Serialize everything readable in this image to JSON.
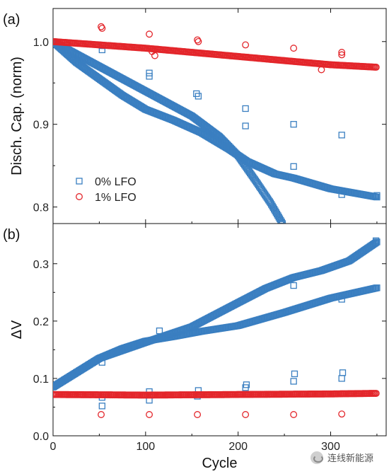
{
  "chart_data": [
    {
      "type": "scatter",
      "panel_label": "(a)",
      "ylabel": "Disch. Cap. (norm)",
      "xlim": [
        0,
        360
      ],
      "ylim": [
        0.78,
        1.04
      ],
      "yticks": [
        0.8,
        0.9,
        1.0
      ],
      "ytick_labels": [
        "0.8",
        "0.9",
        "1.0"
      ],
      "legend": {
        "placement": "lower-left",
        "entries": [
          {
            "label": "0% LFO",
            "color": "#3a7fc1",
            "marker": "square"
          },
          {
            "label": "1% LFO",
            "color": "#e3262b",
            "marker": "circle"
          }
        ]
      },
      "series": [
        {
          "name": "0% LFO",
          "color": "#3a7fc1",
          "marker": "square",
          "curves": [
            [
              [
                0,
                1.0
              ],
              [
                25,
                0.975
              ],
              [
                50,
                0.955
              ],
              [
                75,
                0.935
              ],
              [
                100,
                0.918
              ],
              [
                130,
                0.905
              ],
              [
                160,
                0.89
              ],
              [
                190,
                0.87
              ],
              [
                210,
                0.855
              ],
              [
                240,
                0.84
              ],
              [
                260,
                0.835
              ],
              [
                300,
                0.822
              ],
              [
                350,
                0.812
              ]
            ],
            [
              [
                0,
                1.0
              ],
              [
                50,
                0.97
              ],
              [
                100,
                0.94
              ],
              [
                150,
                0.91
              ],
              [
                180,
                0.885
              ],
              [
                200,
                0.862
              ],
              [
                220,
                0.83
              ],
              [
                235,
                0.805
              ],
              [
                248,
                0.78
              ]
            ]
          ],
          "outliers": [
            [
              53,
              0.99
            ],
            [
              53,
              0.995
            ],
            [
              104,
              0.958
            ],
            [
              104,
              0.962
            ],
            [
              155,
              0.937
            ],
            [
              157,
              0.934
            ],
            [
              208,
              0.919
            ],
            [
              208,
              0.898
            ],
            [
              260,
              0.9
            ],
            [
              260,
              0.849
            ],
            [
              312,
              0.887
            ],
            [
              312,
              0.815
            ],
            [
              350,
              0.814
            ]
          ]
        },
        {
          "name": "1% LFO",
          "color": "#e3262b",
          "marker": "circle",
          "curves": [
            [
              [
                0,
                1.0
              ],
              [
                50,
                0.996
              ],
              [
                100,
                0.992
              ],
              [
                150,
                0.987
              ],
              [
                200,
                0.982
              ],
              [
                250,
                0.977
              ],
              [
                300,
                0.972
              ],
              [
                350,
                0.969
              ]
            ]
          ],
          "outliers": [
            [
              52,
              1.018
            ],
            [
              53,
              1.016
            ],
            [
              104,
              1.009
            ],
            [
              107,
              0.988
            ],
            [
              110,
              0.983
            ],
            [
              156,
              1.002
            ],
            [
              157,
              1.0
            ],
            [
              208,
              0.996
            ],
            [
              260,
              0.992
            ],
            [
              290,
              0.966
            ],
            [
              312,
              0.987
            ],
            [
              312,
              0.984
            ]
          ]
        }
      ]
    },
    {
      "type": "scatter",
      "panel_label": "(b)",
      "ylabel": "ΔV",
      "xlabel": "Cycle",
      "xlim": [
        0,
        360
      ],
      "ylim": [
        0.0,
        0.37
      ],
      "xticks": [
        0,
        100,
        200,
        300
      ],
      "xtick_labels": [
        "0",
        "100",
        "200",
        "300"
      ],
      "yticks": [
        0.0,
        0.1,
        0.2,
        0.3
      ],
      "ytick_labels": [
        "0.0",
        "0.1",
        "0.2",
        "0.3"
      ],
      "series": [
        {
          "name": "0% LFO",
          "color": "#3a7fc1",
          "marker": "square",
          "curves": [
            [
              [
                0,
                0.085
              ],
              [
                25,
                0.11
              ],
              [
                50,
                0.135
              ],
              [
                75,
                0.152
              ],
              [
                100,
                0.165
              ],
              [
                130,
                0.173
              ],
              [
                160,
                0.182
              ],
              [
                200,
                0.192
              ],
              [
                250,
                0.215
              ],
              [
                300,
                0.24
              ],
              [
                350,
                0.258
              ]
            ],
            [
              [
                0,
                0.085
              ],
              [
                50,
                0.135
              ],
              [
                100,
                0.163
              ],
              [
                150,
                0.19
              ],
              [
                200,
                0.232
              ],
              [
                230,
                0.257
              ],
              [
                260,
                0.276
              ],
              [
                290,
                0.288
              ],
              [
                320,
                0.305
              ],
              [
                350,
                0.338
              ]
            ]
          ],
          "outliers": [
            [
              3,
              0.072
            ],
            [
              53,
              0.052
            ],
            [
              53,
              0.067
            ],
            [
              53,
              0.128
            ],
            [
              104,
              0.062
            ],
            [
              104,
              0.077
            ],
            [
              115,
              0.183
            ],
            [
              156,
              0.069
            ],
            [
              157,
              0.079
            ],
            [
              208,
              0.084
            ],
            [
              209,
              0.089
            ],
            [
              260,
              0.095
            ],
            [
              261,
              0.108
            ],
            [
              260,
              0.262
            ],
            [
              312,
              0.1
            ],
            [
              313,
              0.11
            ],
            [
              312,
              0.238
            ],
            [
              349,
              0.34
            ]
          ]
        },
        {
          "name": "1% LFO",
          "color": "#e3262b",
          "marker": "circle",
          "curves": [
            [
              [
                0,
                0.072
              ],
              [
                100,
                0.071
              ],
              [
                200,
                0.072
              ],
              [
                300,
                0.073
              ],
              [
                350,
                0.074
              ]
            ]
          ],
          "outliers": [
            [
              52,
              0.037
            ],
            [
              104,
              0.037
            ],
            [
              156,
              0.037
            ],
            [
              208,
              0.037
            ],
            [
              260,
              0.037
            ],
            [
              312,
              0.038
            ]
          ]
        }
      ]
    }
  ],
  "watermark": {
    "text": "连线新能源",
    "icon": "wechat-logo-icon"
  }
}
